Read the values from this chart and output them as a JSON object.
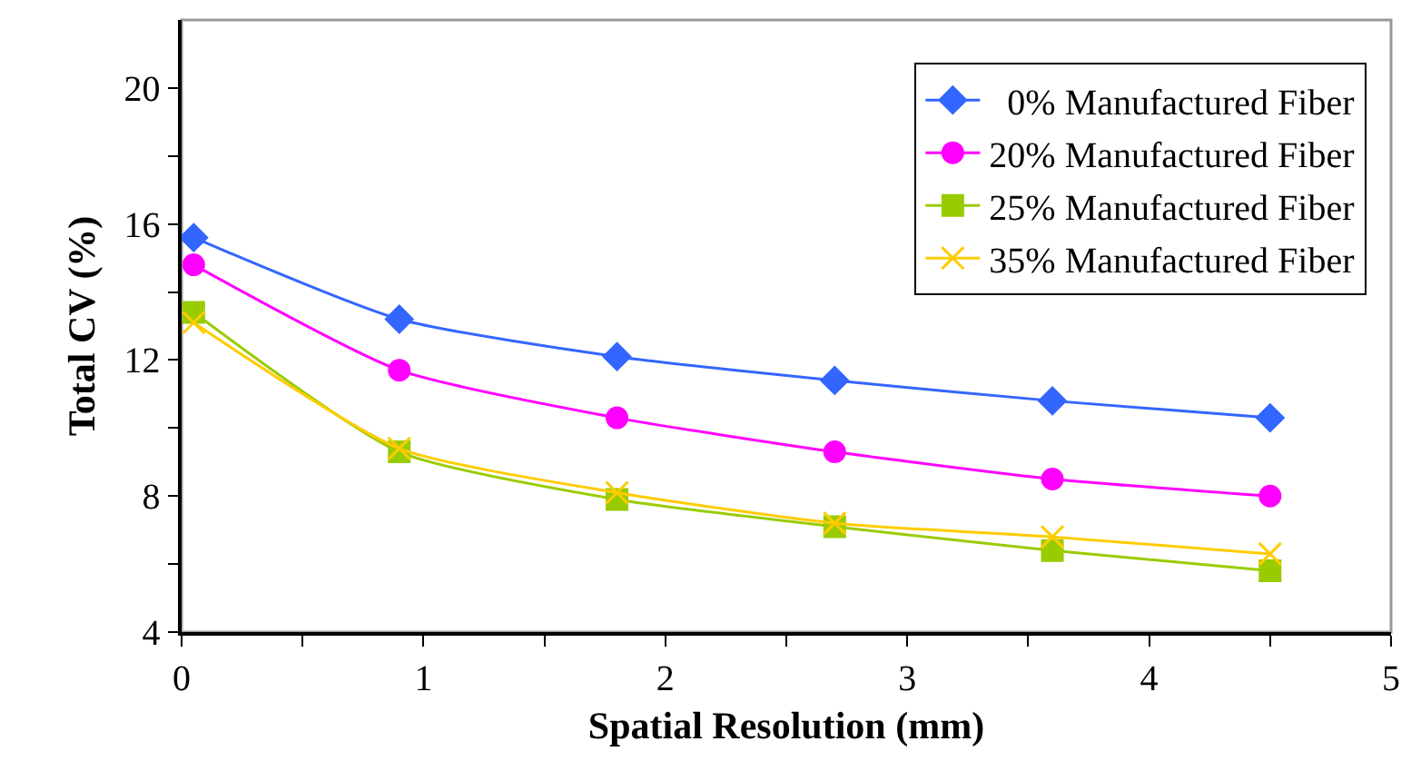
{
  "chart_data": {
    "type": "line",
    "xlabel": "Spatial Resolution (mm)",
    "ylabel": "Total CV (%)",
    "x": [
      0.05,
      0.9,
      1.8,
      2.7,
      3.6,
      4.5
    ],
    "series": [
      {
        "name": "  0% Manufactured Fiber",
        "color": "#3366ff",
        "marker": "diamond",
        "values": [
          15.6,
          13.2,
          12.1,
          11.4,
          10.8,
          10.3
        ]
      },
      {
        "name": "20% Manufactured Fiber",
        "color": "#ff00ff",
        "marker": "circle",
        "values": [
          14.8,
          11.7,
          10.3,
          9.3,
          8.5,
          8.0
        ]
      },
      {
        "name": "25% Manufactured Fiber",
        "color": "#99cc00",
        "marker": "square",
        "values": [
          13.4,
          9.3,
          7.9,
          7.1,
          6.4,
          5.8
        ]
      },
      {
        "name": "35% Manufactured Fiber",
        "color": "#ffcc00",
        "marker": "cross",
        "values": [
          13.1,
          9.4,
          8.1,
          7.2,
          6.8,
          6.3
        ]
      }
    ],
    "xlim": [
      0,
      5
    ],
    "ylim": [
      4,
      22
    ],
    "xticks": [
      0,
      {
        "value": 0.5,
        "label": null
      },
      1,
      {
        "value": 1.5,
        "label": null
      },
      2,
      {
        "value": 2.5,
        "label": null
      },
      3,
      {
        "value": 3.5,
        "label": null
      },
      4,
      {
        "value": 4.5,
        "label": null
      },
      5
    ],
    "yticks": [
      4,
      {
        "value": 6,
        "label": null
      },
      8,
      {
        "value": 10,
        "label": null
      },
      12,
      {
        "value": 14,
        "label": null
      },
      16,
      {
        "value": 18,
        "label": null
      },
      20
    ],
    "grid": false,
    "legend": "top right",
    "line_style": "solid"
  }
}
